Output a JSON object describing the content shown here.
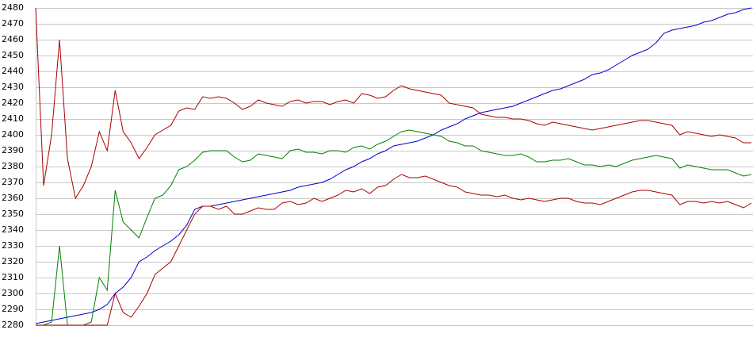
{
  "chart_data": {
    "type": "line",
    "categories": [
      null,
      null,
      null,
      null,
      null,
      null,
      null,
      null,
      null,
      null,
      null,
      null,
      null,
      null,
      null,
      null,
      null,
      null,
      null,
      null,
      null,
      null,
      null,
      null,
      null,
      null,
      null,
      null,
      null,
      null,
      null,
      null,
      null,
      null,
      null,
      null,
      null,
      null,
      null,
      null,
      null,
      null,
      null,
      null,
      null,
      null,
      null,
      null,
      null,
      null,
      null,
      null,
      null,
      null,
      null,
      null,
      null,
      null,
      null,
      null,
      null,
      null,
      null,
      null,
      null,
      null,
      null,
      null,
      null,
      null,
      null,
      null,
      null,
      null,
      null,
      null,
      null,
      null,
      null,
      null,
      null,
      null,
      null,
      null,
      null,
      null,
      null,
      null,
      null,
      null,
      null
    ],
    "series": [
      {
        "color": "#0000cc",
        "values": [
          2281,
          2282,
          2283,
          2284,
          2285,
          2286,
          2287,
          2288,
          2290,
          2293,
          2300,
          2304,
          2310,
          2320,
          2323,
          2327,
          2330,
          2333,
          2337,
          2343,
          2353,
          2355,
          2355,
          2356,
          2357,
          2358,
          2359,
          2360,
          2361,
          2362,
          2363,
          2364,
          2365,
          2367,
          2368,
          2369,
          2370,
          2372,
          2375,
          2378,
          2380,
          2383,
          2385,
          2388,
          2390,
          2393,
          2394,
          2395,
          2396,
          2398,
          2400,
          2403,
          2405,
          2407,
          2410,
          2412,
          2414,
          2415,
          2416,
          2417,
          2418,
          2420,
          2422,
          2424,
          2426,
          2428,
          2429,
          2431,
          2433,
          2435,
          2438,
          2439,
          2441,
          2444,
          2447,
          2450,
          2452,
          2454,
          2458,
          2464,
          2466,
          2467,
          2468,
          2469,
          2471,
          2472,
          2474,
          2476,
          2477,
          2479,
          2480
        ]
      },
      {
        "color": "#008000",
        "values": [
          2280,
          2280,
          2282,
          2330,
          2280,
          2280,
          2280,
          2282,
          2310,
          2302,
          2365,
          2345,
          2340,
          2335,
          2348,
          2360,
          2362,
          2368,
          2378,
          2380,
          2384,
          2389,
          2390,
          2390,
          2390,
          2386,
          2383,
          2384,
          2388,
          2387,
          2386,
          2385,
          2390,
          2391,
          2389,
          2389,
          2388,
          2390,
          2390,
          2389,
          2392,
          2393,
          2391,
          2394,
          2396,
          2399,
          2402,
          2403,
          2402,
          2401,
          2400,
          2399,
          2396,
          2395,
          2393,
          2393,
          2390,
          2389,
          2388,
          2387,
          2387,
          2388,
          2386,
          2383,
          2383,
          2384,
          2384,
          2385,
          2383,
          2381,
          2381,
          2380,
          2381,
          2380,
          2382,
          2384,
          2385,
          2386,
          2387,
          2386,
          2385,
          2379,
          2381,
          2380,
          2379,
          2378,
          2378,
          2378,
          2376,
          2374,
          2375
        ]
      },
      {
        "color": "#aa0000",
        "values": [
          2480,
          2368,
          2400,
          2460,
          2385,
          2360,
          2368,
          2380,
          2402,
          2390,
          2428,
          2402,
          2395,
          2385,
          2392,
          2400,
          2403,
          2406,
          2415,
          2417,
          2416,
          2424,
          2423,
          2424,
          2423,
          2420,
          2416,
          2418,
          2422,
          2420,
          2419,
          2418,
          2421,
          2422,
          2420,
          2421,
          2421,
          2419,
          2421,
          2422,
          2420,
          2426,
          2425,
          2423,
          2424,
          2428,
          2431,
          2429,
          2428,
          2427,
          2426,
          2425,
          2420,
          2419,
          2418,
          2417,
          2413,
          2412,
          2411,
          2411,
          2410,
          2410,
          2409,
          2407,
          2406,
          2408,
          2407,
          2406,
          2405,
          2404,
          2403,
          2404,
          2405,
          2406,
          2407,
          2408,
          2409,
          2409,
          2408,
          2407,
          2406,
          2400,
          2402,
          2401,
          2400,
          2399,
          2400,
          2399,
          2398,
          2395,
          2395
        ]
      },
      {
        "color": "#aa0000",
        "values": [
          2280,
          2280,
          2280,
          2280,
          2280,
          2280,
          2280,
          2280,
          2280,
          2280,
          2300,
          2288,
          2285,
          2292,
          2300,
          2312,
          2316,
          2320,
          2330,
          2340,
          2350,
          2355,
          2355,
          2353,
          2355,
          2350,
          2350,
          2352,
          2354,
          2353,
          2353,
          2357,
          2358,
          2356,
          2357,
          2360,
          2358,
          2360,
          2362,
          2365,
          2364,
          2366,
          2363,
          2367,
          2368,
          2372,
          2375,
          2373,
          2373,
          2374,
          2372,
          2370,
          2368,
          2367,
          2364,
          2363,
          2362,
          2362,
          2361,
          2362,
          2360,
          2359,
          2360,
          2359,
          2358,
          2359,
          2360,
          2360,
          2358,
          2357,
          2357,
          2356,
          2358,
          2360,
          2362,
          2364,
          2365,
          2365,
          2364,
          2363,
          2362,
          2356,
          2358,
          2358,
          2357,
          2358,
          2357,
          2358,
          2356,
          2354,
          2357
        ]
      }
    ],
    "ylim": [
      2280,
      2480
    ],
    "yticks": [
      2280,
      2290,
      2300,
      2310,
      2320,
      2330,
      2340,
      2350,
      2360,
      2370,
      2380,
      2390,
      2400,
      2410,
      2420,
      2430,
      2440,
      2450,
      2460,
      2470,
      2480
    ],
    "grid": true
  }
}
